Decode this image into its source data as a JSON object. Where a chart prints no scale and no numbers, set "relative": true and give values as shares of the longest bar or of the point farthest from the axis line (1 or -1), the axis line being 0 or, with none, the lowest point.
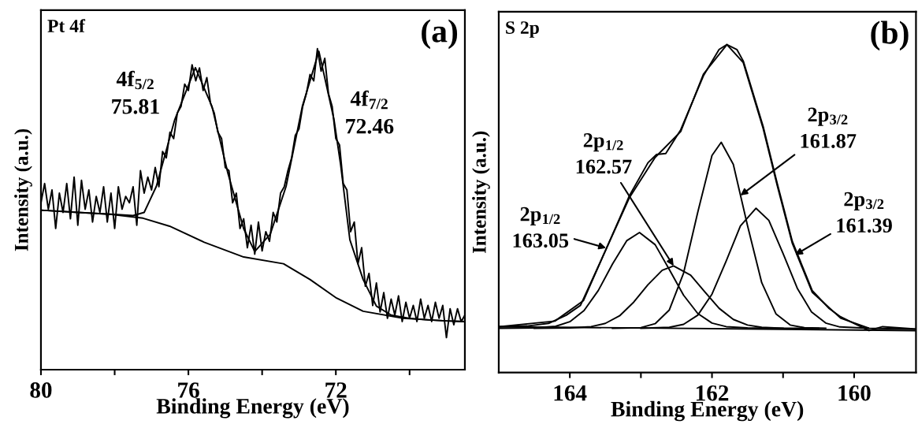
{
  "chart_data": [
    {
      "type": "line",
      "title": "(a)",
      "xlabel": "Binding Energy (eV)",
      "ylabel": "Intensity (a.u.)",
      "relative": true,
      "xlim": [
        80,
        68.5
      ],
      "xticks": [
        80,
        {
          "value": 78,
          "label": null
        },
        76,
        {
          "value": 74,
          "label": null
        },
        72,
        {
          "value": 70,
          "label": null
        }
      ],
      "annotations": [
        "Pt 4f",
        "4f$_{5/2}$\n75.81",
        "4f$_{7/2}$\n72.46"
      ],
      "series": [
        {
          "color": "#000000",
          "x": [
            80.0,
            79.9,
            79.8,
            79.7,
            79.6,
            79.5,
            79.4,
            79.3,
            79.2,
            79.1,
            79.0,
            78.9,
            78.8,
            78.7,
            78.6,
            78.5,
            78.4,
            78.3,
            78.2,
            78.1,
            78.0,
            77.9,
            77.8,
            77.7,
            77.6,
            77.5,
            77.4,
            77.3,
            77.2,
            77.1,
            77.0,
            76.9,
            76.8,
            76.7,
            76.6,
            76.5,
            76.4,
            76.3,
            76.2,
            76.1,
            76.0,
            75.9,
            75.8,
            75.7,
            75.6,
            75.5,
            75.4,
            75.3,
            75.2,
            75.1,
            75.0,
            74.9,
            74.8,
            74.7,
            74.6,
            74.5,
            74.4,
            74.3,
            74.2,
            74.1,
            74.0,
            73.9,
            73.8,
            73.7,
            73.6,
            73.5,
            73.4,
            73.3,
            73.2,
            73.1,
            73.0,
            72.9,
            72.8,
            72.7,
            72.6,
            72.5,
            72.4,
            72.3,
            72.2,
            72.1,
            72.0,
            71.9,
            71.8,
            71.7,
            71.6,
            71.5,
            71.4,
            71.3,
            71.2,
            71.1,
            71.0,
            70.9,
            70.8,
            70.7,
            70.6,
            70.5,
            70.4,
            70.3,
            70.2,
            70.1,
            70.0,
            69.9,
            69.8,
            69.7,
            69.6,
            69.5,
            69.4,
            69.3,
            69.2,
            69.1,
            69.0,
            68.9,
            68.8,
            68.7,
            68.6,
            68.5
          ],
          "values": [
            0.52,
            0.58,
            0.5,
            0.56,
            0.44,
            0.55,
            0.49,
            0.58,
            0.47,
            0.6,
            0.45,
            0.59,
            0.5,
            0.56,
            0.46,
            0.54,
            0.49,
            0.57,
            0.46,
            0.55,
            0.44,
            0.57,
            0.5,
            0.54,
            0.52,
            0.57,
            0.45,
            0.62,
            0.55,
            0.6,
            0.56,
            0.63,
            0.57,
            0.68,
            0.66,
            0.74,
            0.72,
            0.8,
            0.82,
            0.89,
            0.87,
            0.95,
            0.9,
            0.94,
            0.87,
            0.91,
            0.83,
            0.8,
            0.74,
            0.72,
            0.63,
            0.62,
            0.52,
            0.55,
            0.44,
            0.47,
            0.38,
            0.45,
            0.36,
            0.46,
            0.37,
            0.43,
            0.4,
            0.49,
            0.46,
            0.55,
            0.57,
            0.62,
            0.66,
            0.73,
            0.75,
            0.82,
            0.86,
            0.92,
            0.9,
            1.0,
            0.93,
            0.97,
            0.86,
            0.82,
            0.72,
            0.7,
            0.58,
            0.56,
            0.43,
            0.46,
            0.33,
            0.38,
            0.26,
            0.3,
            0.2,
            0.27,
            0.18,
            0.24,
            0.16,
            0.22,
            0.17,
            0.23,
            0.15,
            0.21,
            0.16,
            0.2,
            0.15,
            0.22,
            0.16,
            0.2,
            0.15,
            0.21,
            0.16,
            0.2,
            0.1,
            0.19,
            0.14,
            0.19,
            0.15,
            0.17
          ]
        },
        {
          "color": "#000000",
          "x": [
            80.0,
            79.0,
            78.0,
            77.5,
            77.2,
            76.87,
            76.37,
            75.81,
            75.36,
            74.93,
            74.5,
            74.2,
            73.78,
            73.35,
            72.91,
            72.46,
            72.05,
            71.87,
            71.62,
            71.26,
            70.9,
            70.5,
            70.0,
            69.5,
            69.0,
            68.5
          ],
          "values": [
            0.497,
            0.49,
            0.484,
            0.48,
            0.49,
            0.571,
            0.779,
            0.941,
            0.82,
            0.613,
            0.439,
            0.368,
            0.422,
            0.571,
            0.82,
            0.992,
            0.779,
            0.638,
            0.405,
            0.281,
            0.198,
            0.17,
            0.16,
            0.155,
            0.152,
            0.15
          ]
        },
        {
          "color": "#000000",
          "x": [
            80.0,
            78.09,
            77.23,
            76.51,
            75.57,
            74.5,
            73.42,
            72.7,
            71.98,
            71.26,
            70.18,
            69.0,
            68.5
          ],
          "values": [
            0.497,
            0.484,
            0.472,
            0.447,
            0.397,
            0.351,
            0.33,
            0.281,
            0.223,
            0.182,
            0.16,
            0.152,
            0.15
          ]
        }
      ]
    },
    {
      "type": "line",
      "title": "(b)",
      "xlabel": "Binding Energy (eV)",
      "ylabel": "Intensity (a.u.)",
      "relative": true,
      "xlim": [
        165,
        159.13
      ],
      "xticks": [
        164,
        {
          "value": 163,
          "label": null
        },
        162,
        {
          "value": 161,
          "label": null
        },
        160
      ],
      "annotations": [
        "S 2p",
        {
          "text": "2p$_{1/2}$\n163.05",
          "x": 163.49,
          "y": 0.38
        },
        {
          "text": "2p$_{1/2}$\n162.57",
          "x": 162.54,
          "y": 0.325
        },
        {
          "text": "2p$_{3/2}$\n161.87",
          "x": 161.6,
          "y": 0.54
        },
        {
          "text": "2p$_{3/2}$\n161.39",
          "x": 160.83,
          "y": 0.359
        }
      ],
      "series": [
        {
          "color": "#000000",
          "x": [
            164.99,
            164.6,
            164.3,
            164.05,
            163.85,
            163.49,
            163.3,
            163.16,
            162.9,
            162.78,
            162.65,
            162.44,
            162.12,
            161.9,
            161.79,
            161.65,
            161.56,
            161.28,
            161.08,
            160.87,
            160.59,
            160.35,
            160.19,
            160.0,
            159.79,
            159.6,
            159.4,
            159.13
          ],
          "values": [
            0.14,
            0.142,
            0.15,
            0.175,
            0.205,
            0.376,
            0.47,
            0.54,
            0.64,
            0.665,
            0.668,
            0.74,
            0.905,
            0.985,
            1.0,
            0.985,
            0.95,
            0.75,
            0.575,
            0.4,
            0.25,
            0.195,
            0.17,
            0.15,
            0.128,
            0.14,
            0.137,
            0.133
          ]
        },
        {
          "color": "#000000",
          "x": [
            164.99,
            164.21,
            163.81,
            163.49,
            163.16,
            162.8,
            162.44,
            162.12,
            161.79,
            161.56,
            161.28,
            161.08,
            160.87,
            160.59,
            160.19,
            159.79,
            159.13
          ],
          "values": [
            0.14,
            0.157,
            0.219,
            0.376,
            0.534,
            0.656,
            0.735,
            0.91,
            1.0,
            0.945,
            0.744,
            0.569,
            0.394,
            0.245,
            0.166,
            0.135,
            0.132
          ]
        },
        {
          "color": "#000000",
          "x": [
            165.0,
            164.5,
            164.2,
            164.0,
            163.8,
            163.6,
            163.4,
            163.2,
            163.02,
            162.8,
            162.6,
            162.4,
            162.2,
            162.0,
            161.8,
            161.5,
            161.0
          ],
          "values": [
            0.135,
            0.136,
            0.141,
            0.155,
            0.189,
            0.25,
            0.331,
            0.402,
            0.427,
            0.39,
            0.314,
            0.236,
            0.18,
            0.151,
            0.14,
            0.136,
            0.135
          ]
        },
        {
          "color": "#000000",
          "x": [
            164.5,
            164.0,
            163.7,
            163.5,
            163.3,
            163.1,
            162.9,
            162.7,
            162.54,
            162.3,
            162.1,
            161.9,
            161.7,
            161.5,
            161.3,
            161.0,
            160.5
          ],
          "values": [
            0.135,
            0.136,
            0.14,
            0.15,
            0.173,
            0.215,
            0.268,
            0.312,
            0.325,
            0.297,
            0.246,
            0.196,
            0.162,
            0.145,
            0.138,
            0.135,
            0.135
          ]
        },
        {
          "color": "#000000",
          "x": [
            163.4,
            163.0,
            162.8,
            162.6,
            162.4,
            162.2,
            162.0,
            161.87,
            161.7,
            161.5,
            161.3,
            161.1,
            160.9,
            160.7,
            160.4
          ],
          "values": [
            0.135,
            0.137,
            0.149,
            0.191,
            0.303,
            0.489,
            0.662,
            0.702,
            0.635,
            0.448,
            0.274,
            0.179,
            0.145,
            0.137,
            0.135
          ]
        },
        {
          "color": "#000000",
          "x": [
            163.0,
            162.6,
            162.4,
            162.2,
            162.0,
            161.8,
            161.6,
            161.38,
            161.2,
            161.0,
            160.8,
            160.6,
            160.4,
            160.2,
            159.8
          ],
          "values": [
            0.135,
            0.138,
            0.147,
            0.175,
            0.239,
            0.34,
            0.447,
            0.501,
            0.464,
            0.363,
            0.257,
            0.185,
            0.151,
            0.139,
            0.135
          ]
        },
        {
          "color": "#000000",
          "x": [
            165.0,
            159.13
          ],
          "values": [
            0.14,
            0.128
          ]
        }
      ]
    }
  ]
}
